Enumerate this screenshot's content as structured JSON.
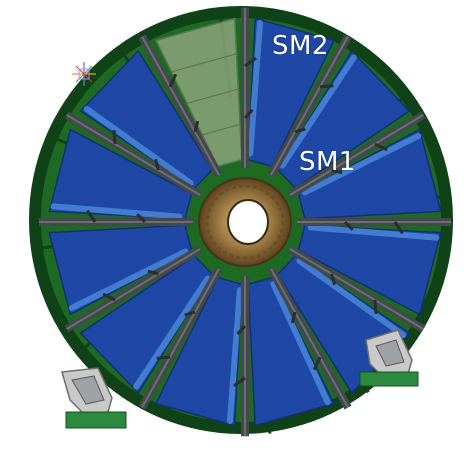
{
  "labels": {
    "sm2": "SM2",
    "sm1": "SM1"
  },
  "colors": {
    "background": "#ffffff",
    "module_blue": "#1f48a6",
    "module_blue_light": "#4f8fe0",
    "module_blue_dark": "#152f73",
    "frame_green": "#1d6a22",
    "frame_green_dark": "#0f4216",
    "strut_grey": "#44484c",
    "open_sector": "#8aa37a",
    "hub_brown": "#8b6a35",
    "stand_grey": "#b8b8b8",
    "foot_green": "#2b8a3e"
  },
  "icons": {
    "orientation_gizmo": "axis-triad-icon"
  }
}
